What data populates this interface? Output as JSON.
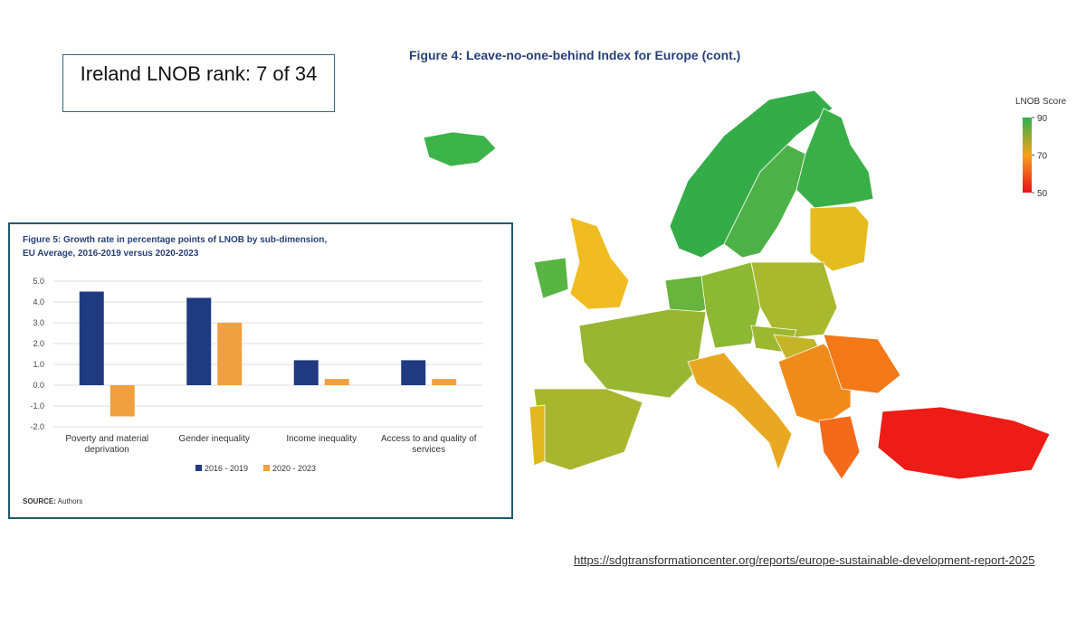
{
  "rank_box": {
    "text": "Ireland LNOB rank: 7 of 34"
  },
  "map": {
    "title": "Figure 4: Leave-no-one-behind Index for Europe (cont.)",
    "legend": {
      "title": "LNOB Score",
      "ticks": [
        90,
        70,
        50
      ],
      "range": [
        50,
        90
      ],
      "colors": [
        "#e8141c",
        "#f8a018",
        "#2bb24c"
      ]
    }
  },
  "source_url": "https://sdgtransformationcenter.org/reports/europe-sustainable-development-report-2025",
  "chart_data": {
    "type": "bar",
    "title": "Figure 5: Growth rate in percentage points of LNOB by sub-dimension,\nEU Average, 2016-2019 versus 2020-2023",
    "categories": [
      "Poverty and material deprivation",
      "Gender inequality",
      "Income inequality",
      "Access to and quality of services"
    ],
    "series": [
      {
        "name": "2016 - 2019",
        "color": "#1f3a80",
        "values": [
          4.5,
          4.2,
          1.2,
          1.2
        ]
      },
      {
        "name": "2020 - 2023",
        "color": "#f0a040",
        "values": [
          -1.5,
          3.0,
          0.3,
          0.3
        ]
      }
    ],
    "ylim": [
      -2,
      5
    ],
    "yticks": [
      {
        "value": 5,
        "label": "5.0"
      },
      {
        "value": 4,
        "label": "4.0"
      },
      {
        "value": 3,
        "label": "3.0"
      },
      {
        "value": 2,
        "label": "2.0"
      },
      {
        "value": 1,
        "label": "1.0"
      },
      {
        "value": 0,
        "label": "0.0"
      },
      {
        "value": -1,
        "label": "-1.0"
      },
      {
        "value": -2,
        "label": "-2.0"
      }
    ],
    "grid": true,
    "source_label": "SOURCE:",
    "source": "Authors"
  }
}
